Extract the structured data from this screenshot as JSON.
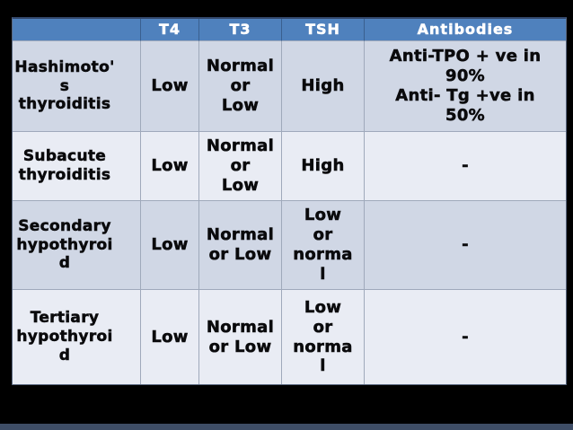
{
  "theme": {
    "header-bg": "#4f81bd",
    "header-text": "#ffffff",
    "band-dark": "#d0d7e5",
    "band-light": "#e9ecf4",
    "grid-line": "#9fa9bb",
    "header-divider": "#3a608f",
    "outer-border": "#5a6880",
    "outer-border-top": "#33486b",
    "text": "#0a0a0c",
    "bottom-strip": "#3e4d66"
  },
  "table": {
    "header_labels": [
      "",
      "T4",
      "T3",
      "TSH",
      "Antibodies"
    ],
    "rows": [
      {
        "label": "Hashimoto'\ns\nthyroiditis",
        "t4": "Low",
        "t3": "Normal\nor\nLow",
        "tsh": "High",
        "antibodies": "Anti-TPO + ve in\n90%\nAnti- Tg +ve in\n50%"
      },
      {
        "label": "Subacute\nthyroiditis",
        "t4": "Low",
        "t3": "Normal\nor\nLow",
        "tsh": "High",
        "antibodies": "-"
      },
      {
        "label": "Secondary\nhypothyroi\nd",
        "t4": "Low",
        "t3": "Normal\nor Low",
        "tsh": "Low\nor\nnorma\nl",
        "antibodies": "-"
      },
      {
        "label": "Tertiary\nhypothyroi\nd",
        "t4": "Low",
        "t3": "Normal\nor Low",
        "tsh": "Low\nor\nnorma\nl",
        "antibodies": "-"
      }
    ]
  }
}
